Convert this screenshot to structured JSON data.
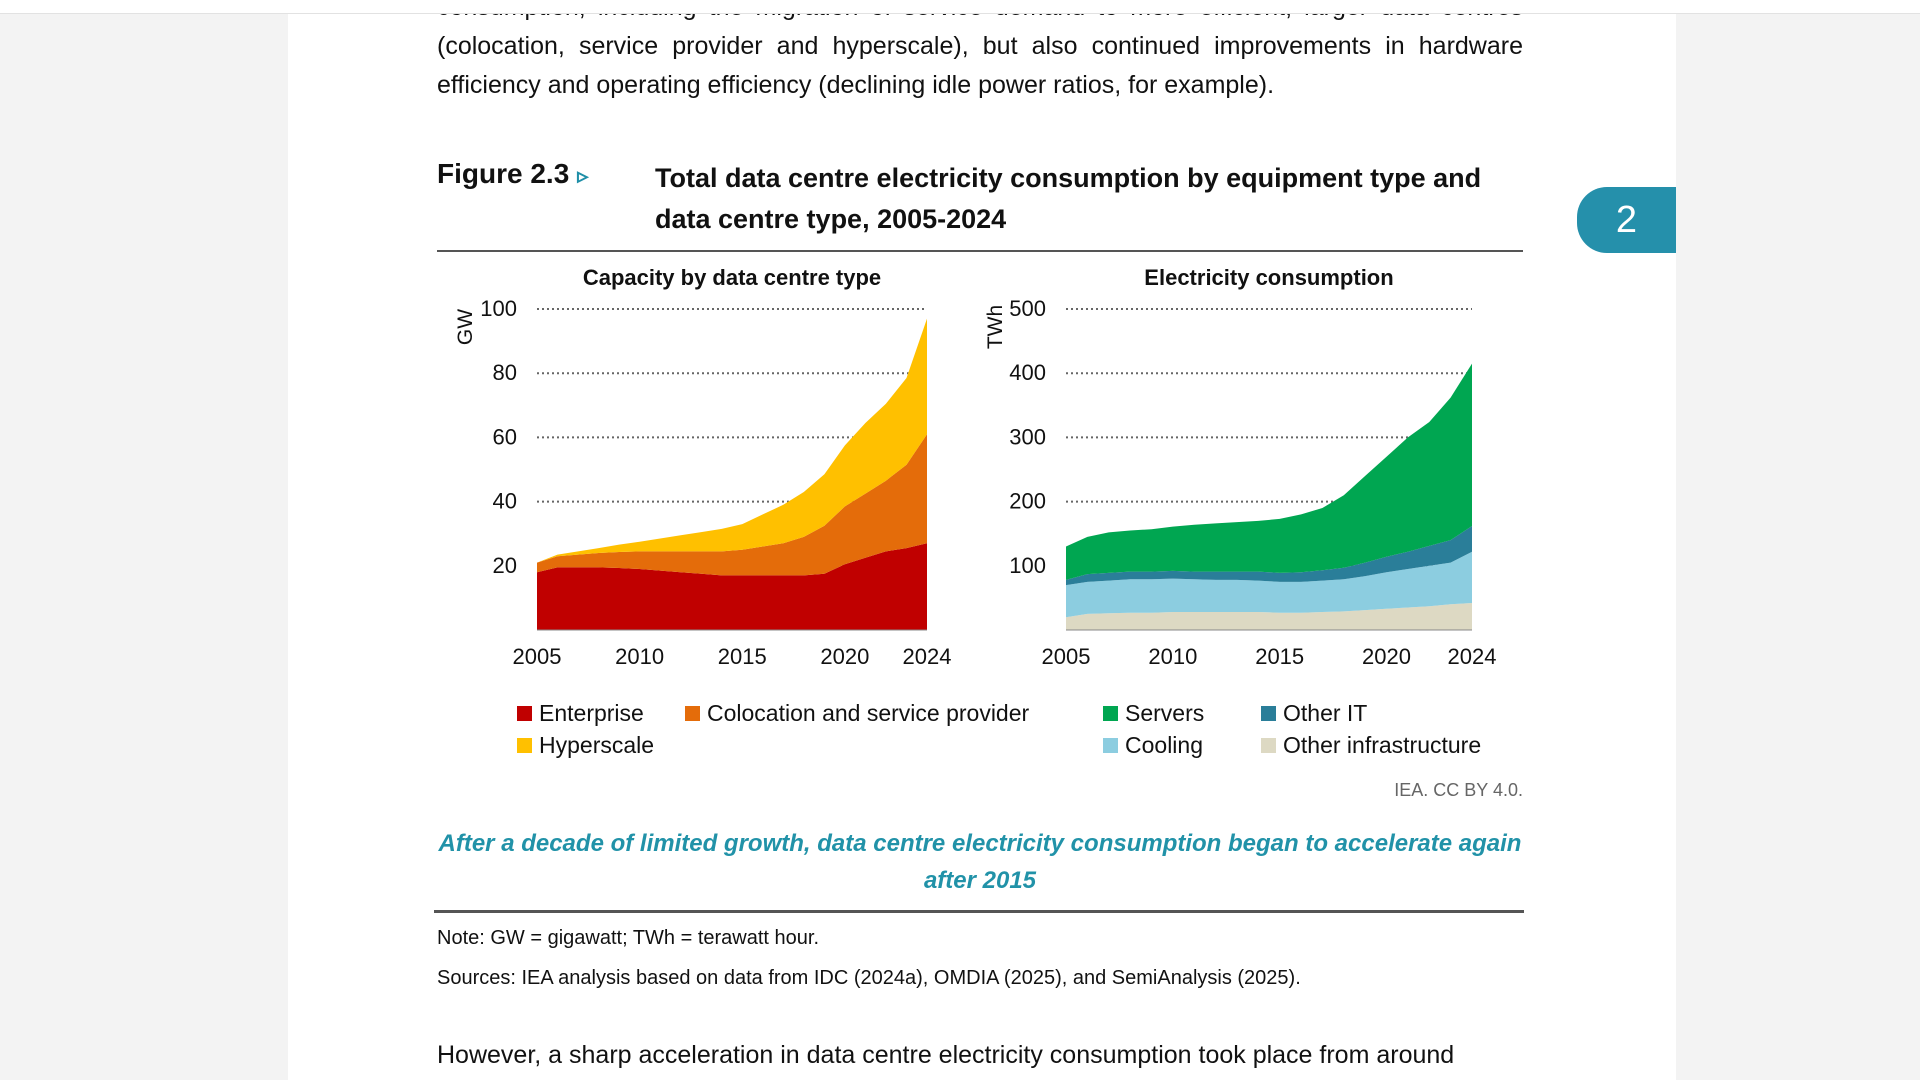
{
  "document": {
    "intro_paragraph": "consumption, including the migration of service demand to more efficient, larger data centres (colocation, service provider and hyperscale), but also continued improvements in hardware efficiency and operating efficiency (declining idle power ratios, for example).",
    "figure_label": "Figure 2.3",
    "figure_arrow": "▹",
    "figure_title": "Total data centre electricity consumption by equipment type and data centre type, 2005-2024",
    "page_tab": "2",
    "credit": "IEA. CC BY 4.0.",
    "caption": "After a decade of limited growth, data centre electricity consumption began to accelerate again after 2015",
    "note": "Note: GW = gigawatt; TWh = terawatt hour.",
    "sources": "Sources: IEA analysis based on data from IDC (2024a), OMDIA (2025), and SemiAnalysis (2025).",
    "bottom_paragraph": "However, a sharp acceleration in data centre electricity consumption took place from around"
  },
  "legend": {
    "left": [
      {
        "label": "Enterprise",
        "color": "#c00000"
      },
      {
        "label": "Colocation and service provider",
        "color": "#e46c0a"
      },
      {
        "label": "Hyperscale",
        "color": "#ffc000"
      }
    ],
    "right": [
      {
        "label": "Servers",
        "color": "#00a651"
      },
      {
        "label": "Other IT",
        "color": "#2a7e99"
      },
      {
        "label": "Cooling",
        "color": "#8ccde0"
      },
      {
        "label": "Other infrastructure",
        "color": "#ddd9c3"
      }
    ]
  },
  "chart_data": [
    {
      "type": "area",
      "stacked": true,
      "title": "Capacity by data centre type",
      "ylabel": "GW",
      "xlabel": "",
      "ylim": [
        0,
        100
      ],
      "yticks": [
        20,
        40,
        60,
        80,
        100
      ],
      "xticks": [
        2005,
        2010,
        2015,
        2020,
        2024
      ],
      "x": [
        2005,
        2006,
        2007,
        2008,
        2009,
        2010,
        2011,
        2012,
        2013,
        2014,
        2015,
        2016,
        2017,
        2018,
        2019,
        2020,
        2021,
        2022,
        2023,
        2024
      ],
      "series": [
        {
          "name": "Enterprise",
          "color": "#c00000",
          "values": [
            18,
            19.5,
            19.5,
            19.5,
            19.3,
            19,
            18.5,
            18,
            17.5,
            17,
            17,
            17,
            17,
            17,
            17.5,
            20.5,
            22.5,
            24.5,
            25.5,
            27
          ]
        },
        {
          "name": "Colocation and service provider",
          "color": "#e46c0a",
          "values": [
            3,
            3.5,
            4,
            4.5,
            5,
            5.5,
            6,
            6.5,
            7,
            7.5,
            8,
            9,
            10,
            12,
            15,
            18,
            20,
            22,
            26,
            34
          ]
        },
        {
          "name": "Hyperscale",
          "color": "#ffc000",
          "values": [
            0,
            0.5,
            1,
            1.5,
            2.3,
            3,
            4,
            5,
            6,
            7,
            8,
            10,
            12,
            14,
            16,
            19,
            22,
            24,
            27,
            36
          ]
        }
      ],
      "grid": "dotted horizontal"
    },
    {
      "type": "area",
      "stacked": true,
      "title": "Electricity consumption",
      "ylabel": "TWh",
      "xlabel": "",
      "ylim": [
        0,
        500
      ],
      "yticks": [
        100,
        200,
        300,
        400,
        500
      ],
      "xticks": [
        2005,
        2010,
        2015,
        2020,
        2024
      ],
      "x": [
        2005,
        2006,
        2007,
        2008,
        2009,
        2010,
        2011,
        2012,
        2013,
        2014,
        2015,
        2016,
        2017,
        2018,
        2019,
        2020,
        2021,
        2022,
        2023,
        2024
      ],
      "series": [
        {
          "name": "Other infrastructure",
          "color": "#ddd9c3",
          "values": [
            20,
            25,
            26,
            27,
            27,
            28,
            28,
            28,
            28,
            28,
            27,
            27,
            28,
            29,
            31,
            33,
            35,
            37,
            40,
            42
          ]
        },
        {
          "name": "Cooling",
          "color": "#8ccde0",
          "values": [
            50,
            50,
            51,
            52,
            52,
            52,
            51,
            50,
            50,
            49,
            48,
            48,
            49,
            50,
            53,
            57,
            60,
            63,
            65,
            80
          ]
        },
        {
          "name": "Other IT",
          "color": "#2a7e99",
          "values": [
            8,
            12,
            12,
            12,
            12,
            12,
            12,
            13,
            13,
            14,
            14,
            15,
            16,
            18,
            21,
            24,
            27,
            31,
            35,
            40
          ]
        },
        {
          "name": "Servers",
          "color": "#00a651",
          "values": [
            52,
            58,
            63,
            64,
            66,
            69,
            73,
            75,
            77,
            79,
            84,
            90,
            97,
            113,
            135,
            156,
            178,
            193,
            222,
            253
          ]
        }
      ],
      "grid": "dotted horizontal"
    }
  ]
}
